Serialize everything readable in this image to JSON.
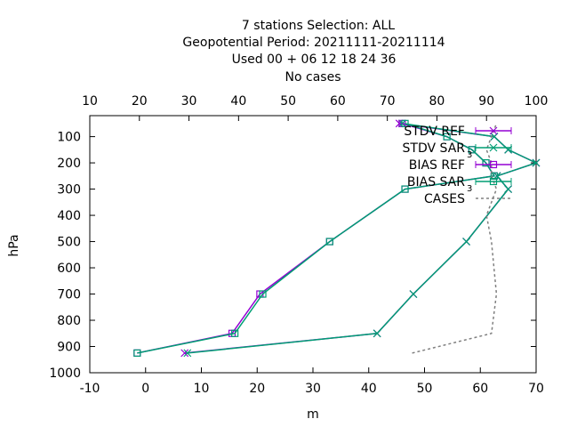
{
  "chart_data": {
    "type": "line",
    "title_lines": [
      "7 stations Selection: ALL",
      "Geopotential  Period: 20211111-20211114",
      "Used  00 + 06 12 18 24 36",
      "No cases"
    ],
    "xlabel": "m",
    "ylabel": "hPa",
    "xlim": [
      -10,
      70
    ],
    "ylim": [
      1000,
      20
    ],
    "x_ticks": [
      "-10",
      "0",
      "10",
      "20",
      "30",
      "40",
      "50",
      "60",
      "70"
    ],
    "y_ticks": [
      "100",
      "200",
      "300",
      "400",
      "500",
      "600",
      "700",
      "800",
      "900",
      "1000"
    ],
    "x2lim": [
      10,
      100
    ],
    "x2_ticks": [
      "10",
      "20",
      "30",
      "40",
      "50",
      "60",
      "70",
      "80",
      "90",
      "100"
    ],
    "grid": false,
    "legend_position": "top-right",
    "series": [
      {
        "name": "STDV REF",
        "color": "#9400d3",
        "marker": "x",
        "points": [
          [
            7,
            925
          ],
          [
            41.5,
            850
          ],
          [
            48,
            700
          ],
          [
            57.5,
            500
          ],
          [
            65,
            300
          ],
          [
            63,
            250
          ],
          [
            70,
            200
          ],
          [
            65,
            150
          ],
          [
            62.5,
            100
          ],
          [
            45.5,
            50
          ]
        ]
      },
      {
        "name": "STDV SAR",
        "subscript": "3",
        "color": "#009e73",
        "marker": "x",
        "points": [
          [
            7.5,
            925
          ],
          [
            41.5,
            850
          ],
          [
            48,
            700
          ],
          [
            57.5,
            500
          ],
          [
            65,
            300
          ],
          [
            63,
            250
          ],
          [
            70,
            200
          ],
          [
            65,
            150
          ],
          [
            62.5,
            100
          ],
          [
            46,
            50
          ]
        ]
      },
      {
        "name": "BIAS REF",
        "color": "#9400d3",
        "marker": "square",
        "points": [
          [
            -1.5,
            925
          ],
          [
            15.5,
            850
          ],
          [
            20.5,
            700
          ],
          [
            33,
            500
          ],
          [
            46.5,
            300
          ],
          [
            62.5,
            250
          ],
          [
            61,
            200
          ],
          [
            58.5,
            150
          ],
          [
            54,
            100
          ],
          [
            46,
            50
          ]
        ]
      },
      {
        "name": "BIAS SAR",
        "subscript": "3",
        "color": "#009e73",
        "marker": "square",
        "points": [
          [
            -1.5,
            925
          ],
          [
            16,
            850
          ],
          [
            21,
            700
          ],
          [
            33,
            500
          ],
          [
            46.5,
            300
          ],
          [
            62.5,
            250
          ],
          [
            61,
            200
          ],
          [
            58.5,
            150
          ],
          [
            54,
            100
          ],
          [
            46.5,
            50
          ]
        ]
      },
      {
        "name": "CASES",
        "color": "#808080",
        "dashed": true,
        "axis": "x2",
        "points": [
          [
            75,
            925
          ],
          [
            91,
            850
          ],
          [
            92,
            700
          ],
          [
            91,
            500
          ],
          [
            90,
            400
          ],
          [
            92,
            300
          ],
          [
            91,
            250
          ],
          [
            91,
            200
          ],
          [
            90,
            150
          ],
          [
            91,
            100
          ],
          [
            92,
            50
          ]
        ]
      }
    ]
  }
}
